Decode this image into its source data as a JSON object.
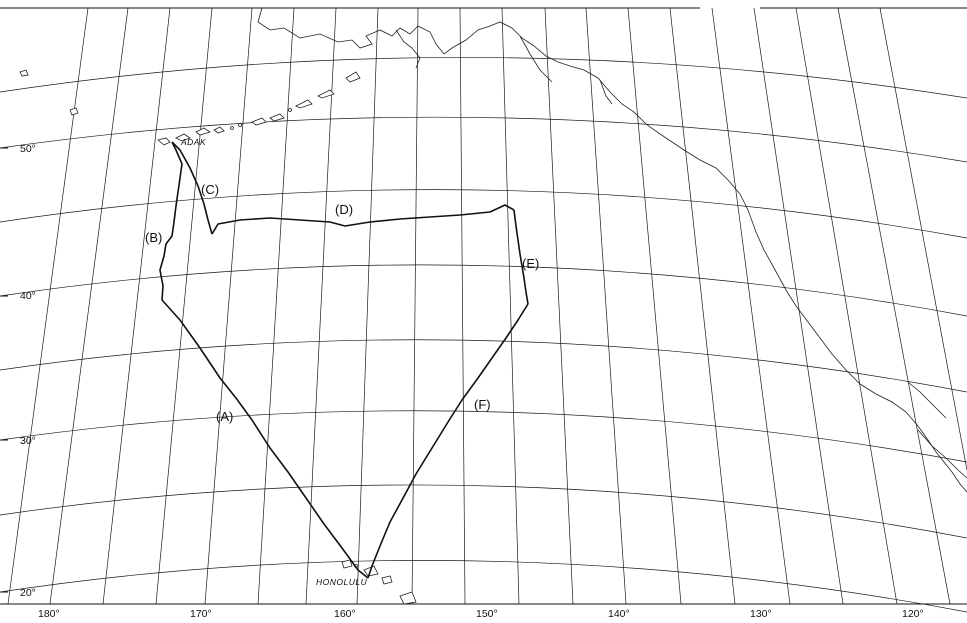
{
  "map": {
    "place_labels": {
      "adak": "ADAK",
      "honolulu": "HONOLULU"
    },
    "latitude_labels": [
      "50°",
      "40°",
      "30°",
      "20°"
    ],
    "longitude_labels": [
      "180°",
      "170°",
      "160°",
      "150°",
      "140°",
      "130°",
      "120°"
    ],
    "leg_labels": {
      "a": "(A)",
      "b": "(B)",
      "c": "(C)",
      "d": "(D)",
      "e": "(E)",
      "f": "(F)"
    },
    "colors": {
      "background": "#ffffff",
      "lines": "#111111"
    }
  }
}
